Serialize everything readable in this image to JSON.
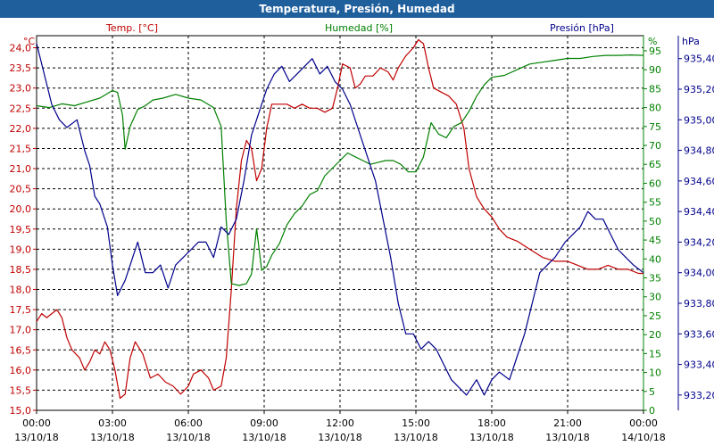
{
  "chart_data": {
    "type": "line",
    "title": "Temperatura, Presión, Humedad",
    "axes": {
      "temp": {
        "label": "Temp. [°C]",
        "unit": "°C",
        "color": "#c00000",
        "range": [
          15.0,
          24.3
        ],
        "ticks": [
          "15,0",
          "15,5",
          "16,0",
          "16,5",
          "17,0",
          "17,5",
          "18,0",
          "18,5",
          "19,0",
          "19,5",
          "20,0",
          "20,5",
          "21,0",
          "21,5",
          "22,0",
          "22,5",
          "23,0",
          "23,5",
          "24,0"
        ]
      },
      "humidity": {
        "label": "Humedad [%]",
        "unit": "%",
        "color": "#008000",
        "range": [
          0,
          99
        ],
        "ticks": [
          "0",
          "5",
          "10",
          "15",
          "20",
          "25",
          "30",
          "35",
          "40",
          "45",
          "50",
          "55",
          "60",
          "65",
          "70",
          "75",
          "80",
          "85",
          "90",
          "95"
        ]
      },
      "pressure": {
        "label": "Presión [hPa]",
        "unit": "hPa",
        "color": "#00008b",
        "range": [
          933.1,
          935.55
        ],
        "ticks": [
          "933,20",
          "933,40",
          "933,60",
          "933,80",
          "934,00",
          "934,20",
          "934,40",
          "934,60",
          "934,80",
          "935,00",
          "935,20",
          "935,40"
        ]
      }
    },
    "x": {
      "range_hours": [
        0,
        24
      ],
      "ticks": [
        {
          "time": "00:00",
          "date": "13/10/18"
        },
        {
          "time": "03:00",
          "date": "13/10/18"
        },
        {
          "time": "06:00",
          "date": "13/10/18"
        },
        {
          "time": "09:00",
          "date": "13/10/18"
        },
        {
          "time": "12:00",
          "date": "13/10/18"
        },
        {
          "time": "15:00",
          "date": "13/10/18"
        },
        {
          "time": "18:00",
          "date": "13/10/18"
        },
        {
          "time": "21:00",
          "date": "13/10/18"
        },
        {
          "time": "00:00",
          "date": "14/10/18"
        }
      ]
    },
    "grid": true,
    "series": [
      {
        "axis": "temp",
        "color": "#c00000",
        "points": [
          [
            0,
            17.2
          ],
          [
            0.2,
            17.4
          ],
          [
            0.4,
            17.3
          ],
          [
            0.6,
            17.4
          ],
          [
            0.8,
            17.5
          ],
          [
            1.0,
            17.3
          ],
          [
            1.2,
            16.8
          ],
          [
            1.4,
            16.5
          ],
          [
            1.7,
            16.3
          ],
          [
            1.9,
            16.0
          ],
          [
            2.1,
            16.2
          ],
          [
            2.3,
            16.5
          ],
          [
            2.5,
            16.4
          ],
          [
            2.7,
            16.7
          ],
          [
            2.9,
            16.5
          ],
          [
            3.1,
            16.0
          ],
          [
            3.3,
            15.3
          ],
          [
            3.5,
            15.4
          ],
          [
            3.7,
            16.3
          ],
          [
            3.9,
            16.7
          ],
          [
            4.2,
            16.4
          ],
          [
            4.5,
            15.8
          ],
          [
            4.8,
            15.9
          ],
          [
            5.1,
            15.7
          ],
          [
            5.4,
            15.6
          ],
          [
            5.7,
            15.4
          ],
          [
            6.0,
            15.6
          ],
          [
            6.2,
            15.9
          ],
          [
            6.5,
            16.0
          ],
          [
            6.8,
            15.8
          ],
          [
            7.0,
            15.5
          ],
          [
            7.3,
            15.6
          ],
          [
            7.5,
            16.3
          ],
          [
            7.7,
            18.0
          ],
          [
            7.9,
            20.0
          ],
          [
            8.1,
            21.2
          ],
          [
            8.3,
            21.7
          ],
          [
            8.5,
            21.5
          ],
          [
            8.7,
            20.7
          ],
          [
            8.9,
            21.0
          ],
          [
            9.1,
            22.0
          ],
          [
            9.3,
            22.6
          ],
          [
            9.6,
            22.6
          ],
          [
            9.9,
            22.6
          ],
          [
            10.2,
            22.5
          ],
          [
            10.5,
            22.6
          ],
          [
            10.8,
            22.5
          ],
          [
            11.1,
            22.5
          ],
          [
            11.4,
            22.4
          ],
          [
            11.7,
            22.5
          ],
          [
            11.9,
            23.0
          ],
          [
            12.1,
            23.6
          ],
          [
            12.4,
            23.5
          ],
          [
            12.6,
            23.0
          ],
          [
            12.8,
            23.1
          ],
          [
            13.0,
            23.3
          ],
          [
            13.3,
            23.3
          ],
          [
            13.6,
            23.5
          ],
          [
            13.9,
            23.4
          ],
          [
            14.1,
            23.2
          ],
          [
            14.3,
            23.5
          ],
          [
            14.6,
            23.8
          ],
          [
            14.9,
            24.0
          ],
          [
            15.1,
            24.2
          ],
          [
            15.3,
            24.1
          ],
          [
            15.5,
            23.5
          ],
          [
            15.7,
            23.0
          ],
          [
            16.0,
            22.9
          ],
          [
            16.3,
            22.8
          ],
          [
            16.6,
            22.6
          ],
          [
            16.9,
            22.0
          ],
          [
            17.1,
            21.0
          ],
          [
            17.4,
            20.3
          ],
          [
            17.7,
            20.0
          ],
          [
            18.0,
            19.8
          ],
          [
            18.3,
            19.5
          ],
          [
            18.6,
            19.3
          ],
          [
            19.0,
            19.2
          ],
          [
            19.5,
            19.0
          ],
          [
            20.0,
            18.8
          ],
          [
            20.5,
            18.7
          ],
          [
            21.0,
            18.7
          ],
          [
            21.4,
            18.6
          ],
          [
            21.8,
            18.5
          ],
          [
            22.2,
            18.5
          ],
          [
            22.6,
            18.6
          ],
          [
            23.0,
            18.5
          ],
          [
            23.4,
            18.5
          ],
          [
            23.8,
            18.4
          ],
          [
            24.0,
            18.4
          ]
        ]
      },
      {
        "axis": "humidity",
        "color": "#008000",
        "points": [
          [
            0,
            80.5
          ],
          [
            0.5,
            80.0
          ],
          [
            1.0,
            81.0
          ],
          [
            1.5,
            80.5
          ],
          [
            2.0,
            81.5
          ],
          [
            2.5,
            82.5
          ],
          [
            3.0,
            84.5
          ],
          [
            3.2,
            84.0
          ],
          [
            3.4,
            78.0
          ],
          [
            3.5,
            69.0
          ],
          [
            3.7,
            75.0
          ],
          [
            4.0,
            79.5
          ],
          [
            4.3,
            80.5
          ],
          [
            4.6,
            82.0
          ],
          [
            5.0,
            82.5
          ],
          [
            5.5,
            83.5
          ],
          [
            6.0,
            82.5
          ],
          [
            6.5,
            82.0
          ],
          [
            7.0,
            80.0
          ],
          [
            7.3,
            75.0
          ],
          [
            7.5,
            50.0
          ],
          [
            7.7,
            33.5
          ],
          [
            8.0,
            33.0
          ],
          [
            8.3,
            33.5
          ],
          [
            8.5,
            36.0
          ],
          [
            8.7,
            48.0
          ],
          [
            8.9,
            37.0
          ],
          [
            9.1,
            38.0
          ],
          [
            9.3,
            41.0
          ],
          [
            9.6,
            44.0
          ],
          [
            9.9,
            49.0
          ],
          [
            10.2,
            52.0
          ],
          [
            10.5,
            54.0
          ],
          [
            10.8,
            57.0
          ],
          [
            11.1,
            58.0
          ],
          [
            11.4,
            62.0
          ],
          [
            11.7,
            64.0
          ],
          [
            12.0,
            66.0
          ],
          [
            12.3,
            68.0
          ],
          [
            12.6,
            67.0
          ],
          [
            12.9,
            66.0
          ],
          [
            13.2,
            65.0
          ],
          [
            13.5,
            65.5
          ],
          [
            13.8,
            66.0
          ],
          [
            14.1,
            66.0
          ],
          [
            14.4,
            65.0
          ],
          [
            14.7,
            63.0
          ],
          [
            15.0,
            63.0
          ],
          [
            15.3,
            67.0
          ],
          [
            15.6,
            76.0
          ],
          [
            15.9,
            73.0
          ],
          [
            16.2,
            72.0
          ],
          [
            16.5,
            75.0
          ],
          [
            16.8,
            76.0
          ],
          [
            17.1,
            79.0
          ],
          [
            17.4,
            83.0
          ],
          [
            17.7,
            86.0
          ],
          [
            18.0,
            88.0
          ],
          [
            18.5,
            88.5
          ],
          [
            19.0,
            90.0
          ],
          [
            19.5,
            91.5
          ],
          [
            20.0,
            92.0
          ],
          [
            20.5,
            92.5
          ],
          [
            21.0,
            93.0
          ],
          [
            21.5,
            93.0
          ],
          [
            22.0,
            93.5
          ],
          [
            22.5,
            93.8
          ],
          [
            23.0,
            93.8
          ],
          [
            23.5,
            93.9
          ],
          [
            24.0,
            93.8
          ]
        ]
      },
      {
        "axis": "pressure",
        "color": "#00008b",
        "points": [
          [
            0,
            935.5
          ],
          [
            0.3,
            935.3
          ],
          [
            0.6,
            935.1
          ],
          [
            0.9,
            935.0
          ],
          [
            1.2,
            934.95
          ],
          [
            1.6,
            935.0
          ],
          [
            1.9,
            934.8
          ],
          [
            2.1,
            934.7
          ],
          [
            2.3,
            934.5
          ],
          [
            2.5,
            934.45
          ],
          [
            2.8,
            934.3
          ],
          [
            3.0,
            934.05
          ],
          [
            3.2,
            933.85
          ],
          [
            3.5,
            933.95
          ],
          [
            3.8,
            934.1
          ],
          [
            4.0,
            934.2
          ],
          [
            4.3,
            934.0
          ],
          [
            4.6,
            934.0
          ],
          [
            4.9,
            934.05
          ],
          [
            5.2,
            933.9
          ],
          [
            5.5,
            934.05
          ],
          [
            5.8,
            934.1
          ],
          [
            6.1,
            934.15
          ],
          [
            6.4,
            934.2
          ],
          [
            6.7,
            934.2
          ],
          [
            7.0,
            934.1
          ],
          [
            7.3,
            934.3
          ],
          [
            7.6,
            934.25
          ],
          [
            7.9,
            934.35
          ],
          [
            8.2,
            934.6
          ],
          [
            8.5,
            934.9
          ],
          [
            8.8,
            935.05
          ],
          [
            9.1,
            935.2
          ],
          [
            9.4,
            935.3
          ],
          [
            9.7,
            935.35
          ],
          [
            10.0,
            935.25
          ],
          [
            10.3,
            935.3
          ],
          [
            10.6,
            935.35
          ],
          [
            10.9,
            935.4
          ],
          [
            11.2,
            935.3
          ],
          [
            11.5,
            935.35
          ],
          [
            11.8,
            935.25
          ],
          [
            12.1,
            935.2
          ],
          [
            12.4,
            935.1
          ],
          [
            12.7,
            934.95
          ],
          [
            13.0,
            934.8
          ],
          [
            13.4,
            934.6
          ],
          [
            13.7,
            934.35
          ],
          [
            14.0,
            934.1
          ],
          [
            14.3,
            933.8
          ],
          [
            14.6,
            933.6
          ],
          [
            14.9,
            933.6
          ],
          [
            15.2,
            933.5
          ],
          [
            15.5,
            933.55
          ],
          [
            15.8,
            933.5
          ],
          [
            16.1,
            933.4
          ],
          [
            16.4,
            933.3
          ],
          [
            16.7,
            933.25
          ],
          [
            17.0,
            933.2
          ],
          [
            17.4,
            933.3
          ],
          [
            17.7,
            933.2
          ],
          [
            18.0,
            933.3
          ],
          [
            18.3,
            933.35
          ],
          [
            18.7,
            933.3
          ],
          [
            19.0,
            933.45
          ],
          [
            19.3,
            933.6
          ],
          [
            19.6,
            933.8
          ],
          [
            19.9,
            934.0
          ],
          [
            20.2,
            934.05
          ],
          [
            20.5,
            934.1
          ],
          [
            20.9,
            934.2
          ],
          [
            21.2,
            934.25
          ],
          [
            21.5,
            934.3
          ],
          [
            21.8,
            934.4
          ],
          [
            22.1,
            934.35
          ],
          [
            22.4,
            934.35
          ],
          [
            22.7,
            934.25
          ],
          [
            23.0,
            934.15
          ],
          [
            23.3,
            934.1
          ],
          [
            23.6,
            934.05
          ],
          [
            24.0,
            934.0
          ]
        ]
      }
    ]
  }
}
